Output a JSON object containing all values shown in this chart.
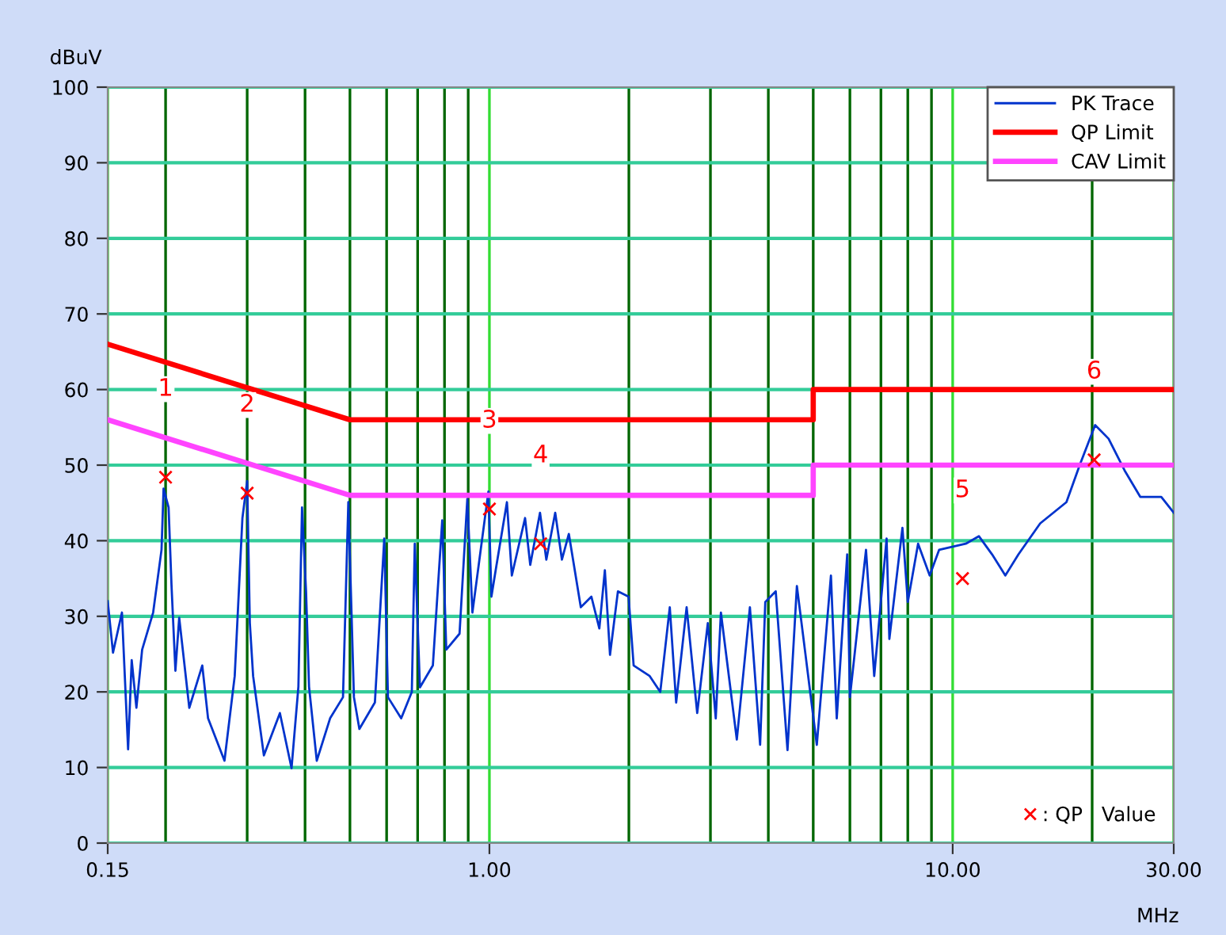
{
  "chart_data": {
    "type": "line",
    "xlabel": "MHz",
    "ylabel": "dBuV",
    "log": "x",
    "grid": true,
    "legend": "top right",
    "xlim": [
      0.15,
      30
    ],
    "xticks": [
      0.15,
      {
        "value": 0.2,
        "label": null
      },
      {
        "value": 0.3,
        "label": null
      },
      {
        "value": 0.4,
        "label": null
      },
      {
        "value": 0.5,
        "label": null
      },
      {
        "value": 0.6,
        "label": null
      },
      {
        "value": 0.7,
        "label": null
      },
      {
        "value": 0.8,
        "label": null
      },
      {
        "value": 0.9,
        "label": null
      },
      {
        "value": 1,
        "label": "1.00"
      },
      {
        "value": 2,
        "label": null
      },
      {
        "value": 3,
        "label": null
      },
      {
        "value": 4,
        "label": null
      },
      {
        "value": 5,
        "label": null
      },
      {
        "value": 6,
        "label": null
      },
      {
        "value": 7,
        "label": null
      },
      {
        "value": 8,
        "label": null
      },
      {
        "value": 9,
        "label": null
      },
      {
        "value": 10,
        "label": "10.00"
      },
      {
        "value": 20,
        "label": null
      },
      {
        "value": 30,
        "label": "30.00"
      }
    ],
    "ylim": [
      0,
      100
    ],
    "yticks": [
      0,
      10,
      20,
      30,
      40,
      50,
      60,
      70,
      80,
      90,
      100
    ],
    "series": [
      {
        "name": "PK Trace",
        "color": "#0033cc",
        "x": [
          0.15,
          0.154,
          0.161,
          0.166,
          0.169,
          0.173,
          0.178,
          0.188,
          0.196,
          0.198,
          0.203,
          0.206,
          0.21,
          0.214,
          0.225,
          0.24,
          0.247,
          0.268,
          0.282,
          0.293,
          0.3,
          0.304,
          0.309,
          0.326,
          0.353,
          0.374,
          0.387,
          0.394,
          0.402,
          0.408,
          0.424,
          0.453,
          0.483,
          0.496,
          0.51,
          0.524,
          0.566,
          0.593,
          0.604,
          0.645,
          0.68,
          0.69,
          0.708,
          0.755,
          0.791,
          0.807,
          0.862,
          0.896,
          0.919,
          0.995,
          1.01,
          1.036,
          1.091,
          1.118,
          1.194,
          1.225,
          1.286,
          1.327,
          1.387,
          1.434,
          1.484,
          1.575,
          1.66,
          1.727,
          1.775,
          1.821,
          1.894,
          1.997,
          2.048,
          2.218,
          2.338,
          2.451,
          2.53,
          2.665,
          2.809,
          2.961,
          3.08,
          3.16,
          3.42,
          3.65,
          3.84,
          3.94,
          4.15,
          4.4,
          4.61,
          5.09,
          5.46,
          5.62,
          5.92,
          6.0,
          6.5,
          6.77,
          7.2,
          7.3,
          7.79,
          8.0,
          8.42,
          8.92,
          9.35,
          10.67,
          11.39,
          12.16,
          12.99,
          13.87,
          15.45,
          17.6,
          18.8,
          20.3,
          21.7,
          23.5,
          25.4,
          28.2,
          30
        ],
        "values": [
          32.0,
          25.2,
          30.5,
          12.4,
          24.2,
          17.9,
          25.6,
          30.5,
          38.8,
          46.9,
          44.4,
          34.0,
          22.8,
          29.8,
          17.9,
          23.5,
          16.5,
          10.9,
          22.1,
          43.0,
          47.9,
          29.1,
          22.1,
          11.6,
          17.2,
          9.9,
          20.7,
          44.4,
          33.3,
          20.7,
          10.9,
          16.5,
          19.3,
          45.1,
          19.3,
          15.1,
          18.6,
          40.3,
          19.3,
          16.5,
          20.0,
          39.6,
          20.6,
          23.5,
          42.7,
          25.6,
          27.7,
          45.5,
          30.5,
          46.5,
          32.6,
          36.8,
          45.1,
          35.4,
          43.0,
          36.8,
          43.7,
          37.5,
          43.7,
          37.5,
          40.9,
          31.2,
          32.6,
          28.4,
          36.1,
          24.9,
          33.3,
          32.6,
          23.5,
          22.1,
          20.0,
          31.2,
          18.6,
          31.2,
          17.2,
          29.1,
          16.5,
          30.5,
          13.7,
          31.2,
          13.0,
          31.9,
          33.3,
          12.3,
          34.0,
          13.0,
          35.4,
          16.5,
          38.2,
          19.3,
          38.8,
          22.1,
          40.3,
          27.0,
          41.7,
          31.9,
          39.6,
          35.4,
          38.8,
          39.6,
          40.6,
          38.2,
          35.4,
          38.2,
          42.3,
          45.1,
          50.0,
          55.3,
          53.5,
          49.3,
          45.8,
          45.8,
          43.7
        ]
      },
      {
        "name": "QP Limit",
        "color": "#ff0000",
        "x": [
          0.15,
          0.5,
          5,
          5,
          30
        ],
        "values": [
          66,
          56,
          56,
          60,
          60
        ]
      },
      {
        "name": "CAV Limit",
        "color": "#ff44ff",
        "x": [
          0.15,
          0.5,
          5,
          5,
          30
        ],
        "values": [
          56,
          46,
          46,
          50,
          50
        ]
      },
      {
        "name": ": QP   Value",
        "color": "#ff0000",
        "type": "scatter",
        "marker": "cross",
        "x": [
          0.2,
          0.3,
          1.0,
          1.29,
          10.5,
          20.2
        ],
        "values": [
          48.4,
          46.3,
          44.2,
          39.6,
          35.0,
          50.7
        ]
      }
    ],
    "annotations": [
      "1",
      "2",
      "3",
      "4",
      "5",
      "6"
    ]
  }
}
